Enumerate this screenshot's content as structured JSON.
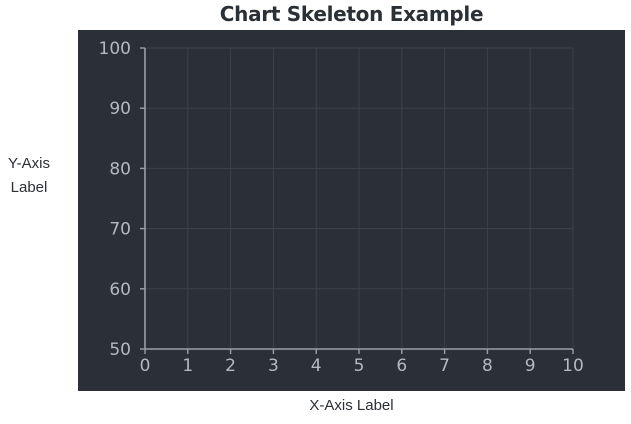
{
  "chart_data": {
    "type": "line",
    "title": "Chart Skeleton Example",
    "xlabel": "X-Axis Label",
    "ylabel_lines": [
      "Y-Axis",
      "Label"
    ],
    "xlim": [
      0,
      10
    ],
    "ylim": [
      50,
      100
    ],
    "x_ticks": [
      0,
      1,
      2,
      3,
      4,
      5,
      6,
      7,
      8,
      9,
      10
    ],
    "y_ticks": [
      50,
      60,
      70,
      80,
      90,
      100
    ],
    "grid": true,
    "series": []
  },
  "colors": {
    "panel_background": "#2b2f37",
    "axis": "#9aa0a8",
    "grid": "#3d424b",
    "tick_text": "#b4b8bf"
  }
}
